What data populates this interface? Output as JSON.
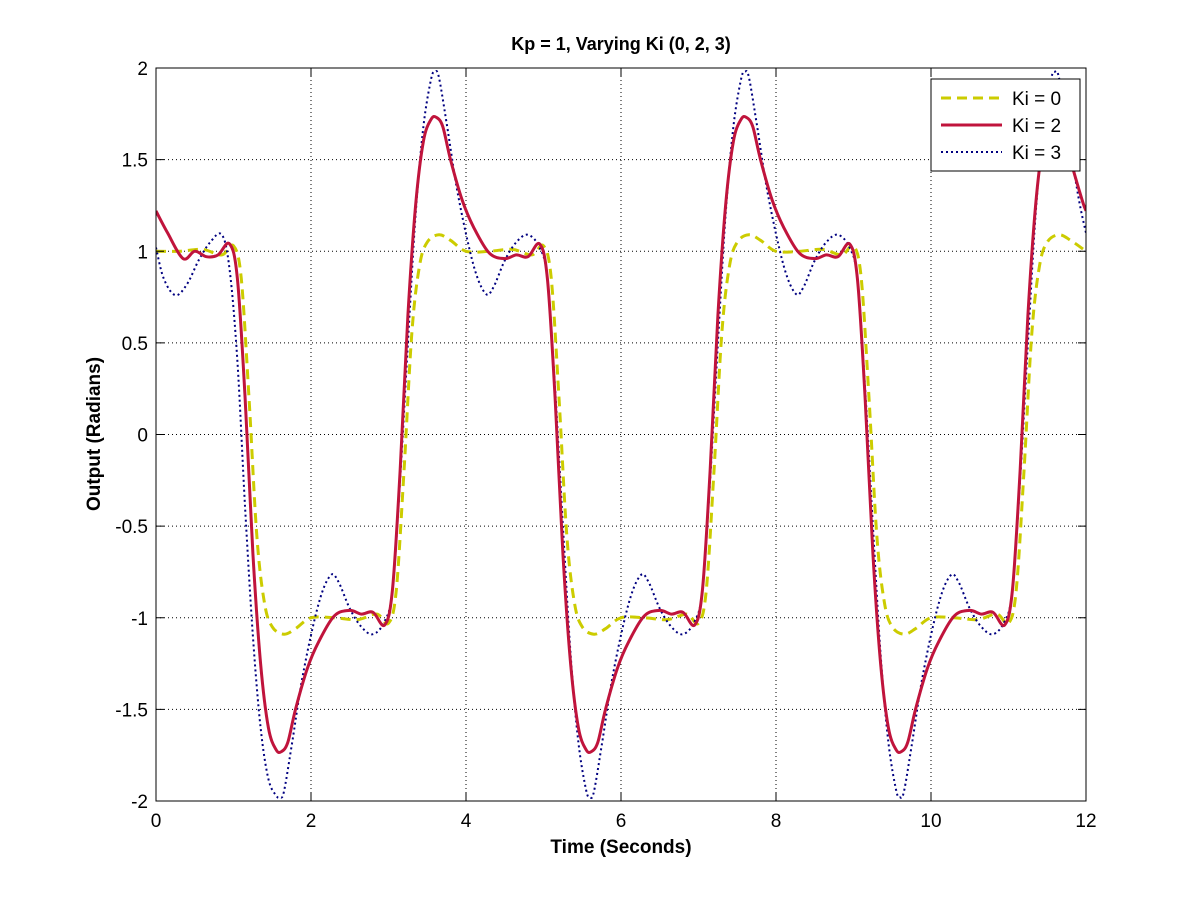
{
  "chart_data": {
    "type": "line",
    "title": "Kp = 1, Varying Ki (0, 2, 3)",
    "xlabel": "Time (Seconds)",
    "ylabel": "Output (Radians)",
    "xlim": [
      0,
      12
    ],
    "ylim": [
      -2,
      2
    ],
    "xticks": [
      0,
      2,
      4,
      6,
      8,
      10,
      12
    ],
    "yticks": [
      -2,
      -1.5,
      -1,
      -0.5,
      0,
      0.5,
      1,
      1.5,
      2
    ],
    "grid": true,
    "legend_position": "top-right",
    "series": [
      {
        "name": "Ki = 0",
        "color": "#cccc00",
        "style": "dashed",
        "x": [
          0,
          0.3,
          0.6,
          0.85,
          1.0,
          1.1,
          1.2,
          1.3,
          1.4,
          1.5,
          1.65,
          1.8,
          2.0,
          2.3,
          2.6,
          2.85,
          3.0,
          3.1,
          3.2,
          3.3,
          3.4,
          3.5,
          3.65,
          3.8,
          4.0,
          4.3,
          4.6,
          4.85,
          5.0,
          5.1,
          5.2,
          5.3,
          5.4,
          5.5,
          5.65,
          5.8,
          6.0,
          6.3,
          6.6,
          6.85,
          7.0,
          7.1,
          7.2,
          7.3,
          7.4,
          7.5,
          7.65,
          7.8,
          8.0,
          8.3,
          8.6,
          8.85,
          9.0,
          9.1,
          9.2,
          9.3,
          9.4,
          9.5,
          9.65,
          9.8,
          10.0,
          10.3,
          10.6,
          10.85,
          11.0,
          11.1,
          11.2,
          11.3,
          11.4,
          11.5,
          11.65,
          11.8,
          12.0
        ],
        "y": [
          1.0,
          1.0,
          1.01,
          0.98,
          1.03,
          0.85,
          0.2,
          -0.55,
          -0.92,
          -1.05,
          -1.09,
          -1.06,
          -1.0,
          -1.0,
          -1.01,
          -0.98,
          -1.03,
          -0.85,
          -0.2,
          0.55,
          0.92,
          1.05,
          1.09,
          1.06,
          1.0,
          1.0,
          1.01,
          0.98,
          1.03,
          0.85,
          0.2,
          -0.55,
          -0.92,
          -1.05,
          -1.09,
          -1.06,
          -1.0,
          -1.0,
          -1.01,
          -0.98,
          -1.03,
          -0.85,
          -0.2,
          0.55,
          0.92,
          1.05,
          1.09,
          1.06,
          1.0,
          1.0,
          1.01,
          0.98,
          1.03,
          0.85,
          0.2,
          -0.55,
          -0.92,
          -1.05,
          -1.09,
          -1.06,
          -1.0,
          -1.0,
          -1.01,
          -0.98,
          -1.03,
          -0.85,
          -0.2,
          0.55,
          0.92,
          1.05,
          1.09,
          1.06,
          1.0
        ]
      },
      {
        "name": "Ki = 2",
        "color": "#c0143c",
        "style": "solid",
        "x": [
          0,
          0.15,
          0.35,
          0.5,
          0.65,
          0.8,
          0.95,
          1.05,
          1.15,
          1.25,
          1.35,
          1.45,
          1.55,
          1.62,
          1.7,
          1.8,
          1.95,
          2.1,
          2.3,
          2.5,
          2.65,
          2.8,
          2.95,
          3.05,
          3.15,
          3.25,
          3.35,
          3.45,
          3.55,
          3.62,
          3.7,
          3.8,
          3.95,
          4.1,
          4.3,
          4.5,
          4.65,
          4.8,
          4.95,
          5.05,
          5.15,
          5.25,
          5.35,
          5.45,
          5.55,
          5.62,
          5.7,
          5.8,
          5.95,
          6.1,
          6.3,
          6.5,
          6.65,
          6.8,
          6.95,
          7.05,
          7.15,
          7.25,
          7.35,
          7.45,
          7.55,
          7.62,
          7.7,
          7.8,
          7.95,
          8.1,
          8.3,
          8.5,
          8.65,
          8.8,
          8.95,
          9.05,
          9.15,
          9.25,
          9.35,
          9.45,
          9.55,
          9.62,
          9.7,
          9.8,
          9.95,
          10.1,
          10.3,
          10.5,
          10.65,
          10.8,
          10.95,
          11.05,
          11.15,
          11.25,
          11.35,
          11.45,
          11.55,
          11.62,
          11.7,
          11.8,
          11.95,
          12.0
        ],
        "y": [
          1.22,
          1.1,
          0.96,
          1.0,
          0.97,
          0.98,
          1.04,
          0.85,
          0.2,
          -0.65,
          -1.25,
          -1.6,
          -1.72,
          -1.73,
          -1.68,
          -1.5,
          -1.28,
          -1.13,
          -0.99,
          -0.96,
          -0.98,
          -0.97,
          -1.04,
          -0.85,
          -0.2,
          0.65,
          1.25,
          1.6,
          1.72,
          1.73,
          1.68,
          1.5,
          1.28,
          1.13,
          0.99,
          0.96,
          0.98,
          0.97,
          1.04,
          0.85,
          0.2,
          -0.65,
          -1.25,
          -1.6,
          -1.72,
          -1.73,
          -1.68,
          -1.5,
          -1.28,
          -1.13,
          -0.99,
          -0.96,
          -0.98,
          -0.97,
          -1.04,
          -0.85,
          -0.2,
          0.65,
          1.25,
          1.6,
          1.72,
          1.73,
          1.68,
          1.5,
          1.28,
          1.13,
          0.99,
          0.96,
          0.98,
          0.97,
          1.04,
          0.85,
          0.2,
          -0.65,
          -1.25,
          -1.6,
          -1.72,
          -1.73,
          -1.68,
          -1.5,
          -1.28,
          -1.13,
          -0.99,
          -0.96,
          -0.98,
          -0.97,
          -1.04,
          -0.85,
          -0.2,
          0.65,
          1.25,
          1.6,
          1.72,
          1.73,
          1.68,
          1.5,
          1.28,
          1.22
        ]
      },
      {
        "name": "Ki = 3",
        "color": "#000080",
        "style": "dotted",
        "x": [
          0,
          0.1,
          0.25,
          0.4,
          0.55,
          0.7,
          0.85,
          0.95,
          1.05,
          1.15,
          1.25,
          1.35,
          1.45,
          1.55,
          1.6,
          1.65,
          1.75,
          1.9,
          2.1,
          2.25,
          2.35,
          2.5,
          2.65,
          2.8,
          2.95,
          3.05,
          3.15,
          3.25,
          3.35,
          3.45,
          3.55,
          3.6,
          3.65,
          3.75,
          3.9,
          4.1,
          4.25,
          4.35,
          4.5,
          4.65,
          4.8,
          4.95,
          5.05,
          5.15,
          5.25,
          5.35,
          5.45,
          5.55,
          5.6,
          5.65,
          5.75,
          5.9,
          6.1,
          6.25,
          6.35,
          6.5,
          6.65,
          6.8,
          6.95,
          7.05,
          7.15,
          7.25,
          7.35,
          7.45,
          7.55,
          7.6,
          7.65,
          7.75,
          7.9,
          8.1,
          8.25,
          8.35,
          8.5,
          8.65,
          8.8,
          8.95,
          9.05,
          9.15,
          9.25,
          9.35,
          9.45,
          9.55,
          9.6,
          9.65,
          9.75,
          9.9,
          10.1,
          10.25,
          10.35,
          10.5,
          10.65,
          10.8,
          10.95,
          11.05,
          11.15,
          11.25,
          11.35,
          11.45,
          11.55,
          11.6,
          11.65,
          11.75,
          11.9,
          12.0
        ],
        "y": [
          1.02,
          0.85,
          0.76,
          0.82,
          0.95,
          1.05,
          1.09,
          0.9,
          0.4,
          -0.4,
          -1.1,
          -1.6,
          -1.88,
          -1.97,
          -1.98,
          -1.95,
          -1.7,
          -1.3,
          -0.92,
          -0.77,
          -0.8,
          -0.95,
          -1.05,
          -1.09,
          -1.02,
          -0.85,
          -0.25,
          0.5,
          1.2,
          1.68,
          1.94,
          1.98,
          1.95,
          1.7,
          1.3,
          0.92,
          0.77,
          0.8,
          0.95,
          1.05,
          1.09,
          1.02,
          0.85,
          0.25,
          -0.5,
          -1.2,
          -1.68,
          -1.94,
          -1.98,
          -1.95,
          -1.7,
          -1.3,
          -0.92,
          -0.77,
          -0.8,
          -0.95,
          -1.05,
          -1.09,
          -1.02,
          -0.85,
          -0.25,
          0.5,
          1.2,
          1.68,
          1.94,
          1.98,
          1.95,
          1.7,
          1.3,
          0.92,
          0.77,
          0.8,
          0.95,
          1.05,
          1.09,
          1.02,
          0.85,
          0.25,
          -0.5,
          -1.2,
          -1.68,
          -1.94,
          -1.98,
          -1.95,
          -1.7,
          -1.3,
          -0.92,
          -0.77,
          -0.8,
          -0.95,
          -1.05,
          -1.09,
          -1.02,
          -0.85,
          -0.25,
          0.5,
          1.2,
          1.68,
          1.94,
          1.98,
          1.95,
          1.7,
          1.3,
          1.1
        ]
      }
    ]
  }
}
